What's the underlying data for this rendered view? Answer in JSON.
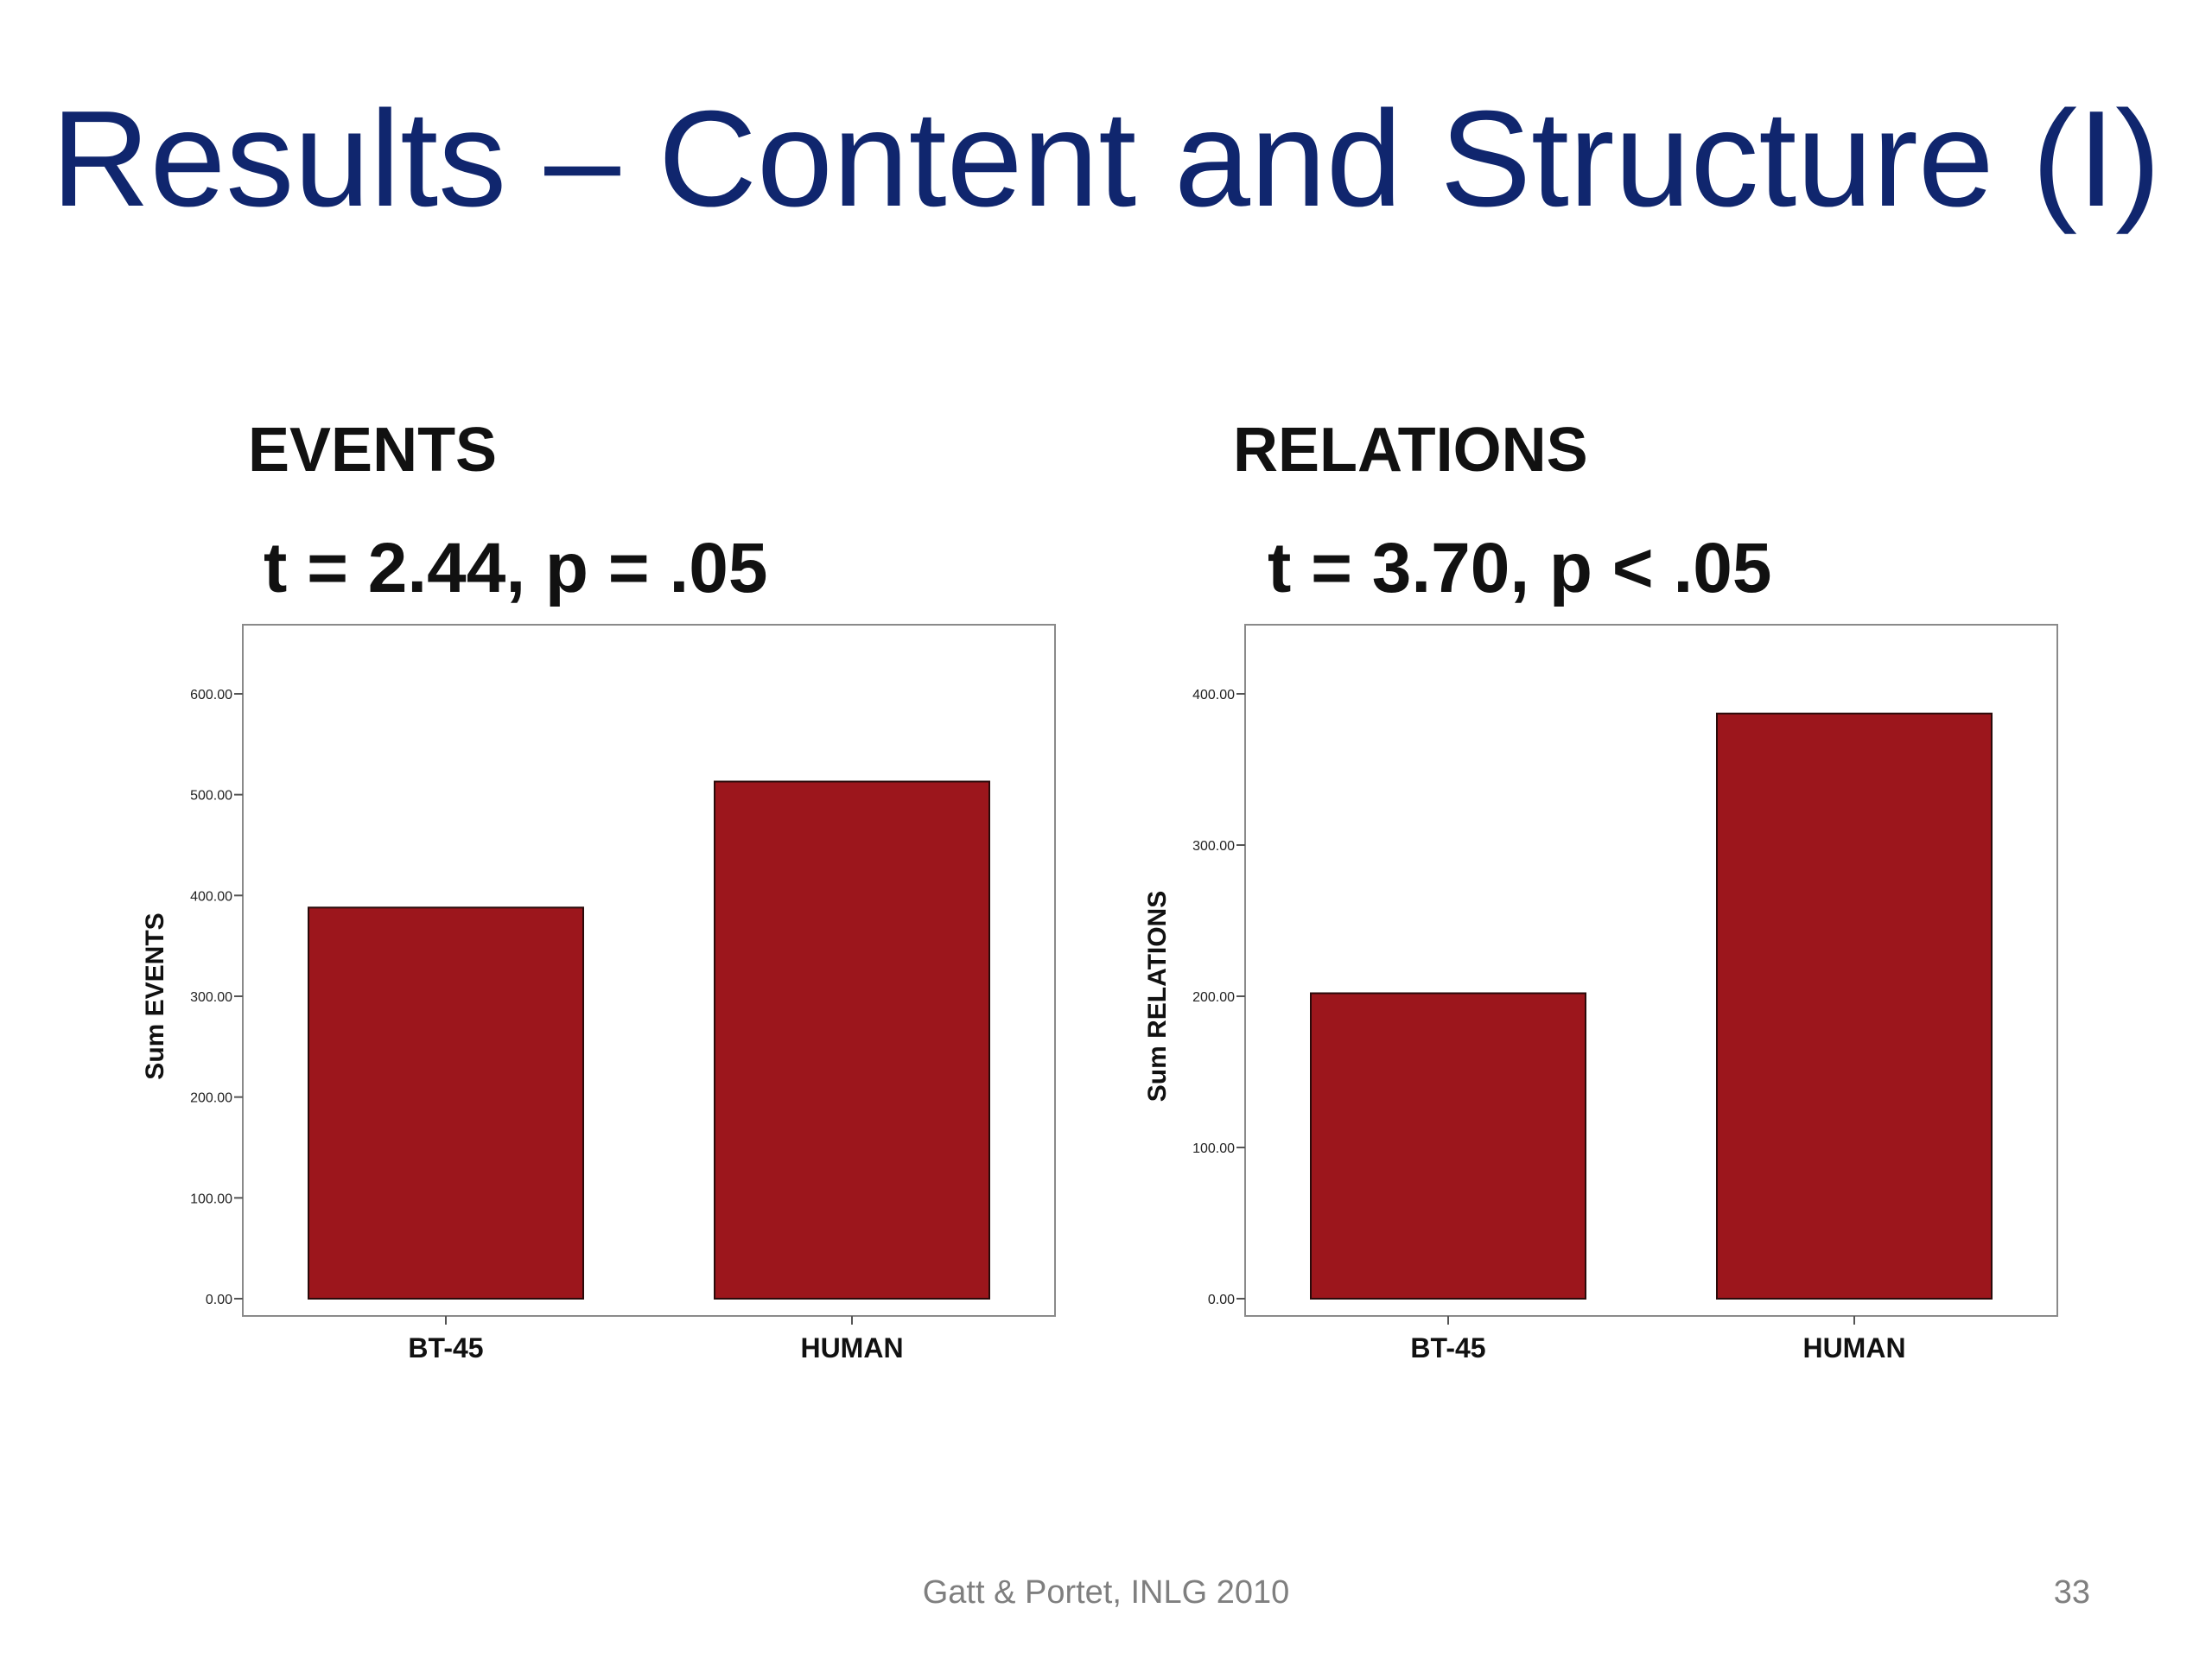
{
  "slide": {
    "title": "Results – Content and Structure (I)",
    "footer": "Gatt & Portet, INLG 2010",
    "page_number": "33"
  },
  "panels": [
    {
      "heading": "EVENTS",
      "stat": "t = 2.44, p = .05"
    },
    {
      "heading": "RELATIONS",
      "stat": "t = 3.70, p < .05"
    }
  ],
  "colors": {
    "bar": "#9c161c",
    "title": "#10266e"
  },
  "chart_data": [
    {
      "type": "bar",
      "title": "",
      "xlabel": "",
      "ylabel": "Sum EVENTS",
      "categories": [
        "BT-45",
        "HUMAN"
      ],
      "values": [
        388,
        513
      ],
      "ylim": [
        0,
        600
      ],
      "yticks": [
        0,
        100,
        200,
        300,
        400,
        500,
        600
      ],
      "ytick_labels": [
        "0.00",
        "100.00",
        "200.00",
        "300.00",
        "400.00",
        "500.00",
        "600.00"
      ],
      "grid": false,
      "legend": "none"
    },
    {
      "type": "bar",
      "title": "",
      "xlabel": "",
      "ylabel": "Sum RELATIONS",
      "categories": [
        "BT-45",
        "HUMAN"
      ],
      "values": [
        202,
        387
      ],
      "ylim": [
        0,
        400
      ],
      "yticks": [
        0,
        100,
        200,
        300,
        400
      ],
      "ytick_labels": [
        "0.00",
        "100.00",
        "200.00",
        "300.00",
        "400.00"
      ],
      "grid": false,
      "legend": "none"
    }
  ]
}
